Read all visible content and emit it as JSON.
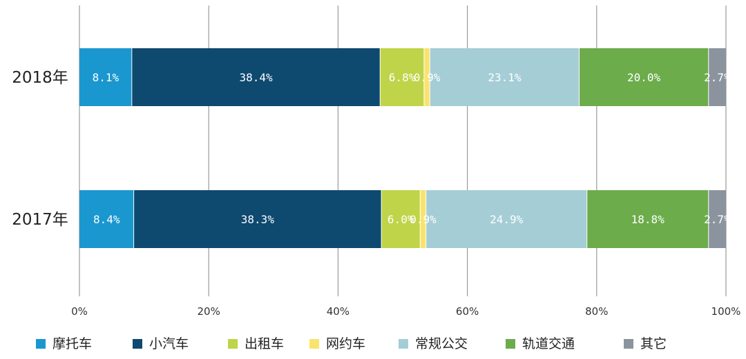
{
  "chart_data": {
    "type": "bar",
    "orientation": "horizontal",
    "stacked": true,
    "percent": true,
    "categories": [
      "2018年",
      "2017年"
    ],
    "series": [
      {
        "name": "摩托车",
        "color": "#1a97cf",
        "values": [
          8.1,
          8.4
        ],
        "labels": [
          "8.1%",
          "8.4%"
        ]
      },
      {
        "name": "小汽车",
        "color": "#0e4970",
        "values": [
          38.4,
          38.3
        ],
        "labels": [
          "38.4%",
          "38.3%"
        ]
      },
      {
        "name": "出租车",
        "color": "#bfd448",
        "values": [
          6.8,
          6.0
        ],
        "labels": [
          "6.8%",
          "6.0%"
        ]
      },
      {
        "name": "网约车",
        "color": "#f9e36e",
        "values": [
          0.9,
          0.9
        ],
        "labels": [
          "0.9%",
          "0.9%"
        ]
      },
      {
        "name": "常规公交",
        "color": "#a5cdd6",
        "values": [
          23.1,
          24.9
        ],
        "labels": [
          "23.1%",
          "24.9%"
        ]
      },
      {
        "name": "轨道交通",
        "color": "#6cac4b",
        "values": [
          20.0,
          18.8
        ],
        "labels": [
          "20.0%",
          "18.8%"
        ]
      },
      {
        "name": "其它",
        "color": "#8b949e",
        "values": [
          2.7,
          2.7
        ],
        "labels": [
          "2.7%",
          "2.7%"
        ]
      }
    ],
    "xlim": [
      0,
      100
    ],
    "xticks": [
      "0%",
      "20%",
      "40%",
      "60%",
      "80%",
      "100%"
    ],
    "grid": "vertical",
    "legend_position": "bottom"
  },
  "colors": {
    "grid": "#9a9a9a",
    "text": "#222222",
    "data_label": "#ffffff"
  }
}
